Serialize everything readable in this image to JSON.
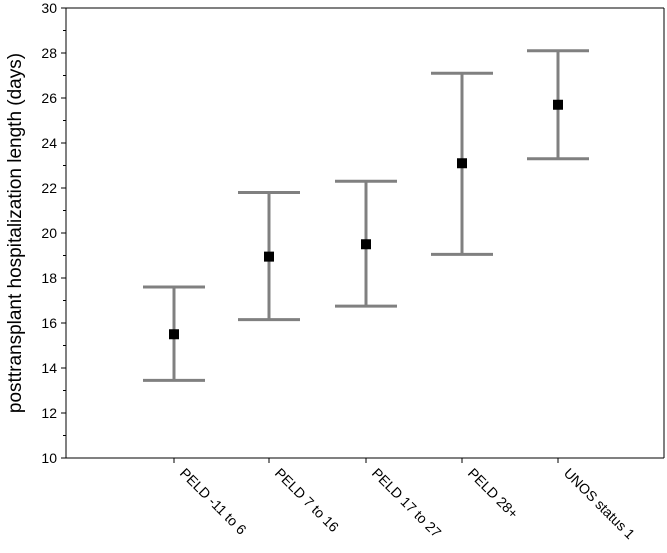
{
  "chart_data": {
    "type": "errorbar",
    "title": "",
    "xlabel": "",
    "ylabel": "posttransplant hospitalization length (days)",
    "ylim": [
      10,
      30
    ],
    "yticks": [
      10,
      12,
      14,
      16,
      18,
      20,
      22,
      24,
      26,
      28,
      30
    ],
    "grid": false,
    "legend": "none",
    "categories": [
      "PELD -11 to 6",
      "PELD 7 to 16",
      "PELD 17 to 27",
      "PELD 28+",
      "UNOS status 1"
    ],
    "means": [
      15.5,
      18.95,
      19.5,
      23.1,
      25.7
    ],
    "upper": [
      17.6,
      21.8,
      22.3,
      27.1,
      28.1
    ],
    "lower": [
      13.45,
      16.15,
      16.75,
      19.05,
      23.3
    ],
    "colors": {
      "errorbar": "#808080",
      "marker": "#000000",
      "axis": "#000000"
    }
  }
}
